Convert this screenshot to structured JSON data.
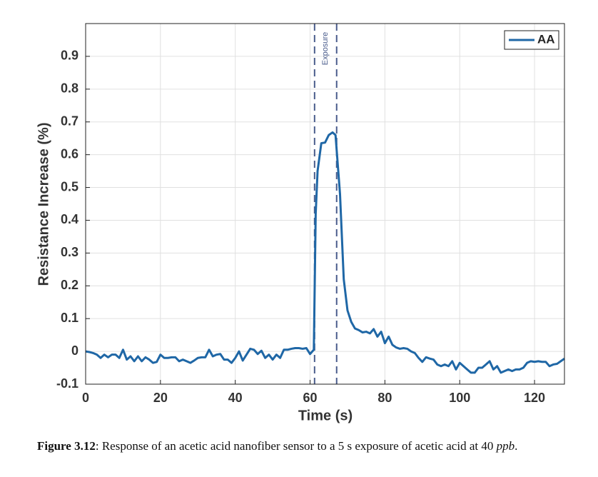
{
  "chart_data": {
    "type": "line",
    "xlabel": "Time (s)",
    "ylabel": "Resistance Increase (%)",
    "x": [
      0,
      1,
      2,
      3,
      4,
      5,
      6,
      7,
      8,
      9,
      10,
      11,
      12,
      13,
      14,
      15,
      16,
      17,
      18,
      19,
      20,
      21,
      22,
      23,
      24,
      25,
      26,
      27,
      28,
      29,
      30,
      31,
      32,
      33,
      34,
      35,
      36,
      37,
      38,
      39,
      40,
      41,
      42,
      43,
      44,
      45,
      46,
      47,
      48,
      49,
      50,
      51,
      52,
      53,
      54,
      55,
      56,
      57,
      58,
      59,
      60,
      61,
      61.5,
      62,
      63,
      64,
      65,
      66,
      66.8,
      68,
      69,
      70,
      71,
      72,
      73,
      74,
      75,
      76,
      77,
      78,
      79,
      80,
      81,
      82,
      83,
      84,
      85,
      86,
      87,
      88,
      89,
      90,
      91,
      92,
      93,
      94,
      95,
      96,
      97,
      98,
      99,
      100,
      101,
      102,
      103,
      104,
      105,
      106,
      107,
      108,
      109,
      110,
      111,
      112,
      113,
      114,
      115,
      116,
      117,
      118,
      119,
      120,
      121,
      122,
      123,
      124,
      125,
      126,
      127,
      128
    ],
    "series": [
      {
        "name": "AA",
        "color": "#1f67a6",
        "values": [
          0,
          -0.002,
          -0.005,
          -0.01,
          -0.02,
          -0.01,
          -0.018,
          -0.01,
          -0.01,
          -0.02,
          0.005,
          -0.025,
          -0.015,
          -0.03,
          -0.015,
          -0.03,
          -0.018,
          -0.025,
          -0.035,
          -0.032,
          -0.01,
          -0.02,
          -0.02,
          -0.018,
          -0.018,
          -0.03,
          -0.025,
          -0.03,
          -0.035,
          -0.028,
          -0.02,
          -0.018,
          -0.018,
          0.005,
          -0.015,
          -0.01,
          -0.008,
          -0.025,
          -0.025,
          -0.035,
          -0.02,
          0,
          -0.028,
          -0.01,
          0.008,
          0.005,
          -0.008,
          0.002,
          -0.02,
          -0.01,
          -0.025,
          -0.01,
          -0.02,
          0.005,
          0.005,
          0.008,
          0.01,
          0.01,
          0.008,
          0.01,
          -0.008,
          0.005,
          0.42,
          0.55,
          0.635,
          0.637,
          0.66,
          0.668,
          0.66,
          0.48,
          0.22,
          0.125,
          0.09,
          0.07,
          0.065,
          0.058,
          0.06,
          0.055,
          0.068,
          0.045,
          0.06,
          0.025,
          0.045,
          0.02,
          0.012,
          0.008,
          0.01,
          0.008,
          0,
          -0.005,
          -0.02,
          -0.032,
          -0.018,
          -0.022,
          -0.025,
          -0.04,
          -0.045,
          -0.04,
          -0.045,
          -0.03,
          -0.055,
          -0.035,
          -0.045,
          -0.055,
          -0.065,
          -0.065,
          -0.05,
          -0.05,
          -0.04,
          -0.03,
          -0.055,
          -0.045,
          -0.065,
          -0.06,
          -0.055,
          -0.06,
          -0.055,
          -0.055,
          -0.05,
          -0.035,
          -0.03,
          -0.032,
          -0.03,
          -0.032,
          -0.032,
          -0.045,
          -0.04,
          -0.038,
          -0.03,
          -0.022
        ]
      }
    ],
    "xlim": [
      0,
      128
    ],
    "xticks": [
      0,
      20,
      40,
      60,
      80,
      100,
      120
    ],
    "ylim": [
      -0.1,
      1
    ],
    "yticks": [
      -0.1,
      0,
      0.1,
      0.2,
      0.3,
      0.4,
      0.5,
      0.6,
      0.7,
      0.8,
      0.9
    ],
    "grid": true,
    "legend": "upper right",
    "vlines": [
      61.2,
      67.1
    ],
    "vline_color": "#4a5c8c",
    "annotation": "Exposure",
    "caption_label": "Figure 3.12",
    "caption_text": ": Response of an acetic acid nanofiber sensor to a 5 s exposure of acetic acid at 40 ",
    "caption_unit": "ppb",
    "caption_end": "."
  }
}
